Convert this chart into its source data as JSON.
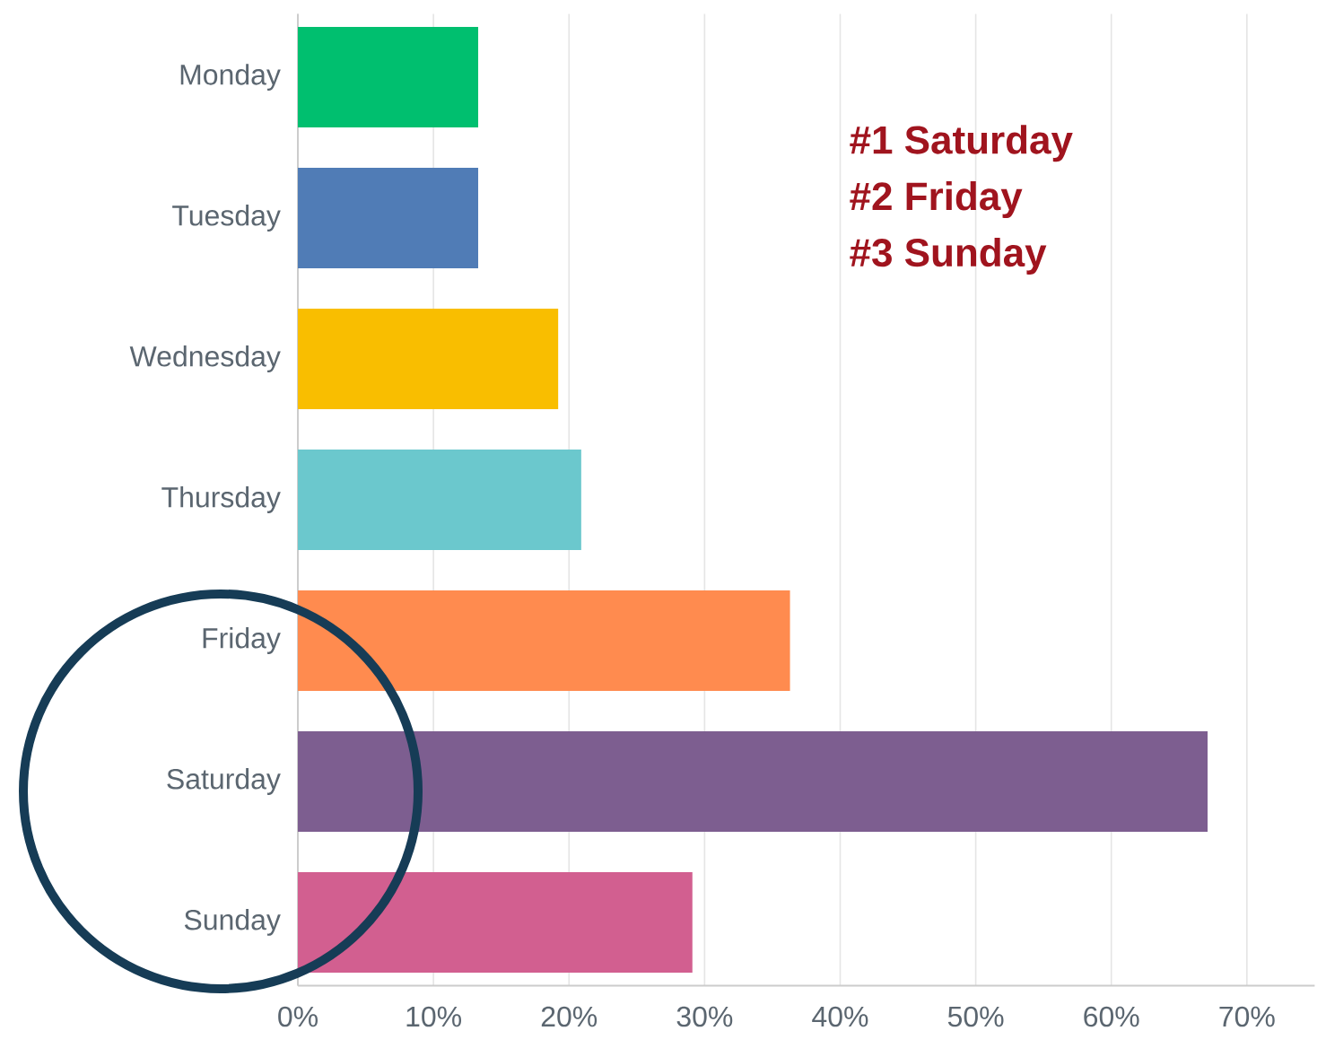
{
  "chart_data": {
    "type": "bar",
    "orientation": "horizontal",
    "categories": [
      "Monday",
      "Tuesday",
      "Wednesday",
      "Thursday",
      "Friday",
      "Saturday",
      "Sunday"
    ],
    "values": [
      13.3,
      13.3,
      19.2,
      20.9,
      36.3,
      67.1,
      29.1
    ],
    "colors": [
      "#00bf6f",
      "#507cb6",
      "#f9be00",
      "#6bc8cd",
      "#ff8b4f",
      "#7d5e90",
      "#d25f90"
    ],
    "xlim": [
      0,
      75
    ],
    "xticks": [
      {
        "value": 0,
        "label": "0%"
      },
      {
        "value": 10,
        "label": "10%"
      },
      {
        "value": 20,
        "label": "20%"
      },
      {
        "value": 30,
        "label": "30%"
      },
      {
        "value": 40,
        "label": "40%"
      },
      {
        "value": 50,
        "label": "50%"
      },
      {
        "value": 60,
        "label": "60%"
      },
      {
        "value": 70,
        "label": "70%"
      }
    ],
    "grid": "x",
    "annotations": [
      "#1 Saturday",
      "#2 Friday",
      "#3 Sunday"
    ]
  }
}
